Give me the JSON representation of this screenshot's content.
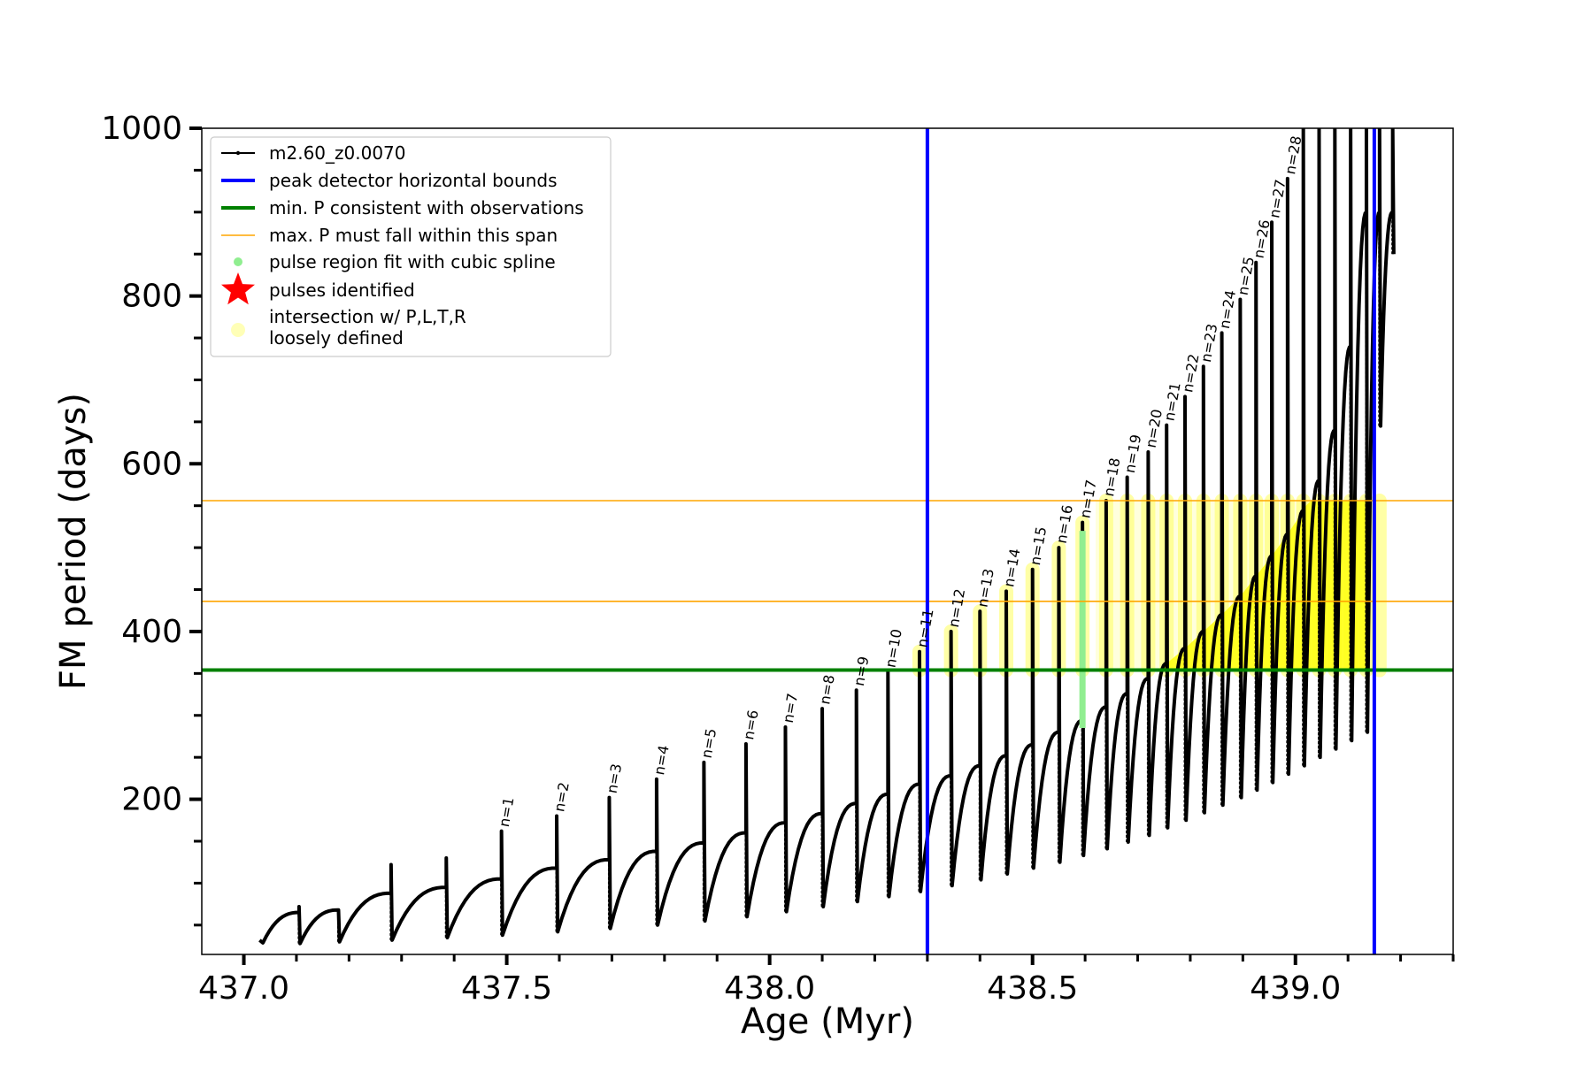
{
  "chart_data": {
    "type": "line",
    "xlabel": "Age (Myr)",
    "ylabel": "FM period (days)",
    "xlim": [
      436.92,
      439.3
    ],
    "ylim": [
      15,
      1000
    ],
    "xticks": [
      437.0,
      437.5,
      438.0,
      438.5,
      439.0
    ],
    "xtick_labels": [
      "437.0",
      "437.5",
      "438.0",
      "438.5",
      "439.0"
    ],
    "yticks": [
      200,
      400,
      600,
      800,
      1000
    ],
    "ytick_labels": [
      "200",
      "400",
      "600",
      "800",
      "1000"
    ],
    "minor_x_step": 0.1,
    "minor_y_step": 50,
    "grid": false,
    "legend_position": "top-left",
    "legend": [
      {
        "label": "m2.60_z0.0070",
        "kind": "line-marker",
        "color": "#000000"
      },
      {
        "label": "peak detector horizontal bounds",
        "kind": "line",
        "color": "#0000ff"
      },
      {
        "label": "min. P consistent with observations",
        "kind": "line",
        "color": "#008000"
      },
      {
        "label": "max. P must fall within this span",
        "kind": "thin-line",
        "color": "#ffa500"
      },
      {
        "label": "pulse region fit with cubic spline",
        "kind": "dot",
        "color": "#90ee90"
      },
      {
        "label": "pulses identified",
        "kind": "star",
        "color": "#ff0000"
      },
      {
        "label": "intersection w/ P,L,T,R\nloosely defined",
        "kind": "faint-dot",
        "color": "#ffff99"
      }
    ],
    "vertical_lines": [
      {
        "x": 438.3,
        "color": "#0000ff"
      },
      {
        "x": 439.15,
        "color": "#0000ff"
      }
    ],
    "horizontal_lines": [
      {
        "y": 354,
        "color": "#008000",
        "role": "min"
      },
      {
        "y": 436,
        "color": "#ffa500",
        "role": "span-low"
      },
      {
        "y": 556,
        "color": "#ffa500",
        "role": "span-high"
      }
    ],
    "pulses": [
      {
        "n": "",
        "x": 437.105,
        "peak": 72,
        "min": 28
      },
      {
        "n": "",
        "x": 437.18,
        "peak": 68,
        "min": 30
      },
      {
        "n": "",
        "x": 437.28,
        "peak": 122,
        "min": 32
      },
      {
        "n": "",
        "x": 437.385,
        "peak": 130,
        "min": 35
      },
      {
        "n": "n=1",
        "x": 437.49,
        "peak": 162,
        "min": 38
      },
      {
        "n": "n=2",
        "x": 437.595,
        "peak": 180,
        "min": 42
      },
      {
        "n": "n=3",
        "x": 437.695,
        "peak": 202,
        "min": 46
      },
      {
        "n": "n=4",
        "x": 437.785,
        "peak": 224,
        "min": 50
      },
      {
        "n": "n=5",
        "x": 437.875,
        "peak": 244,
        "min": 55
      },
      {
        "n": "n=6",
        "x": 437.955,
        "peak": 266,
        "min": 60
      },
      {
        "n": "n=7",
        "x": 438.03,
        "peak": 286,
        "min": 66
      },
      {
        "n": "n=8",
        "x": 438.1,
        "peak": 308,
        "min": 72
      },
      {
        "n": "n=9",
        "x": 438.165,
        "peak": 330,
        "min": 78
      },
      {
        "n": "n=10",
        "x": 438.225,
        "peak": 352,
        "min": 84
      },
      {
        "n": "n=11",
        "x": 438.285,
        "peak": 376,
        "min": 90
      },
      {
        "n": "n=12",
        "x": 438.345,
        "peak": 400,
        "min": 97
      },
      {
        "n": "n=13",
        "x": 438.4,
        "peak": 424,
        "min": 104
      },
      {
        "n": "n=14",
        "x": 438.45,
        "peak": 448,
        "min": 111
      },
      {
        "n": "n=15",
        "x": 438.5,
        "peak": 474,
        "min": 118
      },
      {
        "n": "n=16",
        "x": 438.55,
        "peak": 500,
        "min": 125
      },
      {
        "n": "n=17",
        "x": 438.595,
        "peak": 530,
        "min": 133
      },
      {
        "n": "n=18",
        "x": 438.64,
        "peak": 556,
        "min": 141
      },
      {
        "n": "n=19",
        "x": 438.68,
        "peak": 584,
        "min": 149
      },
      {
        "n": "n=20",
        "x": 438.72,
        "peak": 614,
        "min": 157
      },
      {
        "n": "n=21",
        "x": 438.755,
        "peak": 646,
        "min": 166
      },
      {
        "n": "n=22",
        "x": 438.79,
        "peak": 680,
        "min": 175
      },
      {
        "n": "n=23",
        "x": 438.825,
        "peak": 716,
        "min": 184
      },
      {
        "n": "n=24",
        "x": 438.86,
        "peak": 756,
        "min": 193
      },
      {
        "n": "n=25",
        "x": 438.895,
        "peak": 796,
        "min": 202
      },
      {
        "n": "n=26",
        "x": 438.925,
        "peak": 840,
        "min": 211
      },
      {
        "n": "n=27",
        "x": 438.955,
        "peak": 888,
        "min": 220
      },
      {
        "n": "n=28",
        "x": 438.985,
        "peak": 940,
        "min": 230
      },
      {
        "n": "",
        "x": 439.015,
        "peak": 1000,
        "min": 240
      },
      {
        "n": "",
        "x": 439.045,
        "peak": 1000,
        "min": 250
      },
      {
        "n": "",
        "x": 439.075,
        "peak": 1000,
        "min": 260
      },
      {
        "n": "",
        "x": 439.105,
        "peak": 1000,
        "min": 270
      },
      {
        "n": "",
        "x": 439.135,
        "peak": 1000,
        "min": 280
      },
      {
        "n": "",
        "x": 439.16,
        "peak": 1000,
        "min": 645
      },
      {
        "n": "",
        "x": 439.185,
        "peak": 1000,
        "min": 850
      }
    ],
    "series": [
      {
        "name": "m2.60_z0.0070",
        "color": "#000000",
        "x": [
          437.03,
          437.105,
          437.18,
          437.28,
          437.385,
          437.49,
          437.595,
          437.695,
          437.785,
          437.875,
          437.955,
          438.03,
          438.1,
          438.165,
          438.225,
          438.285,
          438.345,
          438.4,
          438.45,
          438.5,
          438.55,
          438.595,
          438.64,
          438.68,
          438.72,
          438.755,
          438.79,
          438.825,
          438.86,
          438.895,
          438.925,
          438.955,
          438.985,
          439.015,
          439.045,
          439.075,
          439.105,
          439.135
        ],
        "y": [
          20,
          65,
          68,
          88,
          95,
          105,
          118,
          128,
          138,
          148,
          160,
          172,
          183,
          195,
          206,
          218,
          228,
          240,
          252,
          265,
          280,
          294,
          310,
          326,
          344,
          362,
          380,
          400,
          420,
          442,
          466,
          490,
          516,
          544,
          580,
          640,
          740,
          900
        ]
      }
    ]
  }
}
